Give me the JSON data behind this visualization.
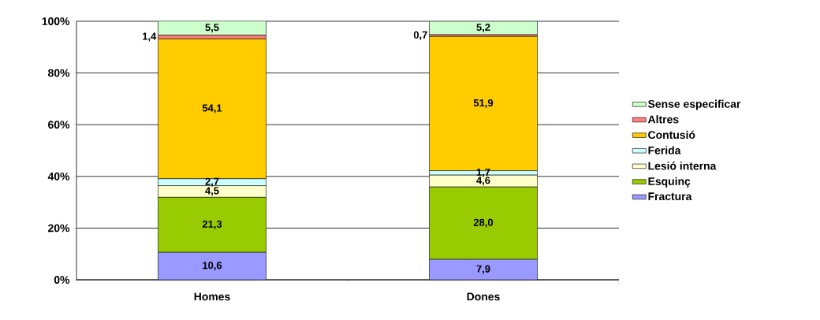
{
  "chart_data": {
    "type": "bar",
    "stacked": true,
    "categories": [
      "Homes",
      "Dones"
    ],
    "series": [
      {
        "name": "Fractura",
        "color": "#9999ff",
        "values": [
          10.6,
          7.9
        ],
        "value_labels": [
          "10,6",
          "7,9"
        ]
      },
      {
        "name": "Esquinç",
        "color": "#99cc00",
        "values": [
          21.3,
          28.0
        ],
        "value_labels": [
          "21,3",
          "28,0"
        ]
      },
      {
        "name": "Lesió interna",
        "color": "#ffffcc",
        "values": [
          4.5,
          4.6
        ],
        "value_labels": [
          "4,5",
          "4,6"
        ]
      },
      {
        "name": "Ferida",
        "color": "#ccffff",
        "values": [
          2.7,
          1.7
        ],
        "value_labels": [
          "2,7",
          "1,7"
        ]
      },
      {
        "name": "Contusió",
        "color": "#ffcc00",
        "values": [
          54.1,
          51.9
        ],
        "value_labels": [
          "54,1",
          "51,9"
        ]
      },
      {
        "name": "Altres",
        "color": "#ff8080",
        "values": [
          1.4,
          0.7
        ],
        "value_labels": [
          "1,4",
          "0,7"
        ]
      },
      {
        "name": "Sense especificar",
        "color": "#ccffcc",
        "values": [
          5.5,
          5.2
        ],
        "value_labels": [
          "5,5",
          "5,2"
        ]
      }
    ],
    "ylim": [
      0,
      100
    ],
    "yticks": [
      {
        "value": 0,
        "label": "0%"
      },
      {
        "value": 20,
        "label": "20%"
      },
      {
        "value": 40,
        "label": "40%"
      },
      {
        "value": 60,
        "label": "60%"
      },
      {
        "value": 80,
        "label": "80%"
      },
      {
        "value": 100,
        "label": "100%"
      }
    ],
    "grid": "y",
    "legend": "right"
  }
}
